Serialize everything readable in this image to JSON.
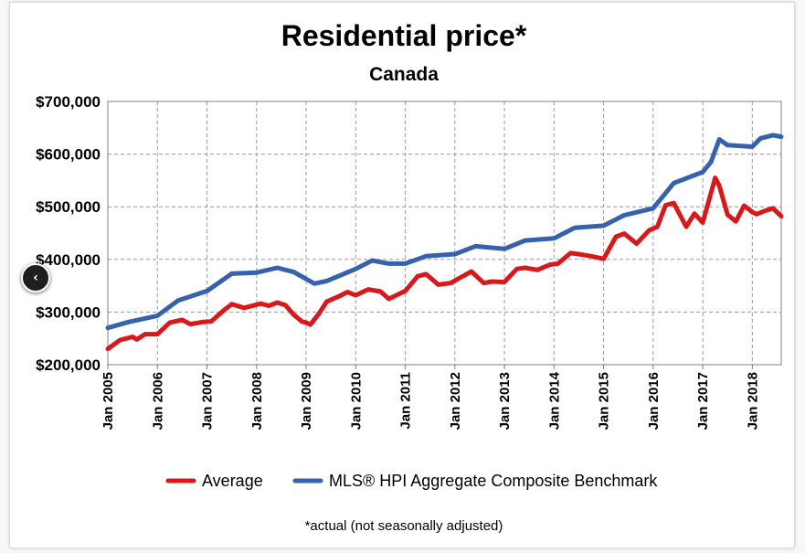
{
  "chart_data": {
    "type": "line",
    "title": "Residential price*",
    "subtitle": "Canada",
    "footnote": "*actual (not seasonally adjusted)",
    "ylim": [
      200000,
      700000
    ],
    "yticks": [
      200000,
      300000,
      400000,
      500000,
      600000,
      700000
    ],
    "ytick_labels": [
      "$200,000",
      "$300,000",
      "$400,000",
      "$500,000",
      "$600,000",
      "$700,000"
    ],
    "x_range": [
      "2005-01",
      "2018-08"
    ],
    "xtick_labels": [
      "Jan 2005",
      "Jan 2006",
      "Jan 2007",
      "Jan 2008",
      "Jan 2009",
      "Jan 2010",
      "Jan 2011",
      "Jan 2012",
      "Jan 2013",
      "Jan 2014",
      "Jan 2015",
      "Jan 2016",
      "Jan 2017",
      "Jan 2018"
    ],
    "grid": true,
    "legend_position": "bottom",
    "series": [
      {
        "name": "Average",
        "color": "#d7191c",
        "points": [
          [
            "2005-01",
            230000
          ],
          [
            "2005-04",
            247000
          ],
          [
            "2005-07",
            253000
          ],
          [
            "2005-08",
            248000
          ],
          [
            "2005-10",
            258000
          ],
          [
            "2006-01",
            258000
          ],
          [
            "2006-04",
            280000
          ],
          [
            "2006-07",
            285000
          ],
          [
            "2006-09",
            277000
          ],
          [
            "2006-12",
            281000
          ],
          [
            "2007-02",
            282000
          ],
          [
            "2007-05",
            303000
          ],
          [
            "2007-07",
            315000
          ],
          [
            "2007-10",
            308000
          ],
          [
            "2008-02",
            316000
          ],
          [
            "2008-04",
            312000
          ],
          [
            "2008-06",
            318000
          ],
          [
            "2008-08",
            313000
          ],
          [
            "2008-10",
            295000
          ],
          [
            "2008-12",
            282000
          ],
          [
            "2009-01",
            280000
          ],
          [
            "2009-02",
            276000
          ],
          [
            "2009-04",
            296000
          ],
          [
            "2009-06",
            320000
          ],
          [
            "2009-09",
            330000
          ],
          [
            "2009-11",
            338000
          ],
          [
            "2010-01",
            332000
          ],
          [
            "2010-04",
            343000
          ],
          [
            "2010-07",
            339000
          ],
          [
            "2010-09",
            325000
          ],
          [
            "2011-01",
            340000
          ],
          [
            "2011-04",
            368000
          ],
          [
            "2011-06",
            372000
          ],
          [
            "2011-09",
            352000
          ],
          [
            "2011-12",
            355000
          ],
          [
            "2012-02",
            364000
          ],
          [
            "2012-05",
            377000
          ],
          [
            "2012-08",
            355000
          ],
          [
            "2012-10",
            358000
          ],
          [
            "2013-01",
            357000
          ],
          [
            "2013-04",
            382000
          ],
          [
            "2013-06",
            384000
          ],
          [
            "2013-09",
            380000
          ],
          [
            "2013-12",
            390000
          ],
          [
            "2014-02",
            392000
          ],
          [
            "2014-05",
            412000
          ],
          [
            "2014-07",
            410000
          ],
          [
            "2014-10",
            406000
          ],
          [
            "2015-01",
            401000
          ],
          [
            "2015-04",
            443000
          ],
          [
            "2015-06",
            449000
          ],
          [
            "2015-09",
            430000
          ],
          [
            "2015-12",
            455000
          ],
          [
            "2016-02",
            462000
          ],
          [
            "2016-04",
            503000
          ],
          [
            "2016-06",
            507000
          ],
          [
            "2016-09",
            462000
          ],
          [
            "2016-11",
            487000
          ],
          [
            "2017-01",
            470000
          ],
          [
            "2017-04",
            555000
          ],
          [
            "2017-05",
            540000
          ],
          [
            "2017-07",
            485000
          ],
          [
            "2017-09",
            472000
          ],
          [
            "2017-11",
            502000
          ],
          [
            "2018-01",
            490000
          ],
          [
            "2018-02",
            486000
          ],
          [
            "2018-04",
            492000
          ],
          [
            "2018-06",
            497000
          ],
          [
            "2018-08",
            482000
          ]
        ]
      },
      {
        "name": "MLS® HPI Aggregate Composite Benchmark",
        "color": "#3561ad",
        "points": [
          [
            "2005-01",
            270000
          ],
          [
            "2005-06",
            281000
          ],
          [
            "2006-01",
            293000
          ],
          [
            "2006-06",
            322000
          ],
          [
            "2007-01",
            340000
          ],
          [
            "2007-07",
            373000
          ],
          [
            "2008-01",
            375000
          ],
          [
            "2008-06",
            384000
          ],
          [
            "2008-10",
            376000
          ],
          [
            "2009-03",
            354000
          ],
          [
            "2009-06",
            359000
          ],
          [
            "2010-01",
            382000
          ],
          [
            "2010-05",
            398000
          ],
          [
            "2010-09",
            392000
          ],
          [
            "2011-01",
            392000
          ],
          [
            "2011-06",
            406000
          ],
          [
            "2012-01",
            410000
          ],
          [
            "2012-06",
            425000
          ],
          [
            "2013-01",
            420000
          ],
          [
            "2013-06",
            436000
          ],
          [
            "2014-01",
            440000
          ],
          [
            "2014-06",
            460000
          ],
          [
            "2015-01",
            464000
          ],
          [
            "2015-06",
            484000
          ],
          [
            "2016-01",
            497000
          ],
          [
            "2016-06",
            545000
          ],
          [
            "2017-01",
            566000
          ],
          [
            "2017-03",
            585000
          ],
          [
            "2017-05",
            628000
          ],
          [
            "2017-07",
            617000
          ],
          [
            "2018-01",
            614000
          ],
          [
            "2018-03",
            630000
          ],
          [
            "2018-06",
            636000
          ],
          [
            "2018-08",
            633000
          ]
        ]
      }
    ]
  },
  "ui": {
    "nav_button_icon": "chevron-left-icon",
    "nav_button_glyph": "‹"
  }
}
